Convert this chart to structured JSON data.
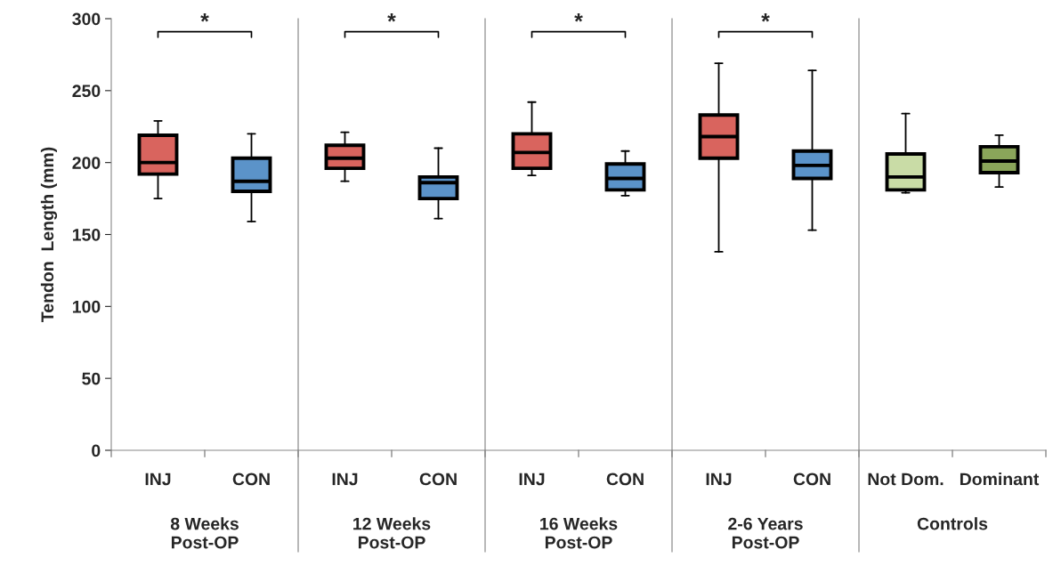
{
  "chart_data": {
    "type": "box",
    "categories": [
      "INJ",
      "CON",
      "INJ",
      "CON",
      "INJ",
      "CON",
      "INJ",
      "CON",
      "Not Dom.",
      "Dominant"
    ],
    "boxes": [
      {
        "low": 175,
        "q1": 192,
        "median": 200,
        "q3": 219,
        "high": 229
      },
      {
        "low": 159,
        "q1": 180,
        "median": 187,
        "q3": 203,
        "high": 220
      },
      {
        "low": 187,
        "q1": 196,
        "median": 203,
        "q3": 212,
        "high": 221
      },
      {
        "low": 161,
        "q1": 175,
        "median": 186,
        "q3": 190,
        "high": 210
      },
      {
        "low": 191,
        "q1": 196,
        "median": 207,
        "q3": 220,
        "high": 242
      },
      {
        "low": 177,
        "q1": 181,
        "median": 189,
        "q3": 199,
        "high": 208
      },
      {
        "low": 138,
        "q1": 203,
        "median": 218,
        "q3": 233,
        "high": 269
      },
      {
        "low": 153,
        "q1": 189,
        "median": 198,
        "q3": 208,
        "high": 264
      },
      {
        "low": 179,
        "q1": 181,
        "median": 190,
        "q3": 206,
        "high": 234
      },
      {
        "low": 183,
        "q1": 193,
        "median": 201,
        "q3": 211,
        "high": 219
      }
    ],
    "colors": [
      "#d9645e",
      "#5b93c9",
      "#d9645e",
      "#5b93c9",
      "#d9645e",
      "#5b93c9",
      "#d9645e",
      "#5b93c9",
      "#c9dca6",
      "#8aa55a"
    ],
    "ylabel": "Tendon  Length (mm)",
    "ylim": [
      0,
      300
    ],
    "yticks": [
      0,
      50,
      100,
      150,
      200,
      250,
      300
    ],
    "grid": false,
    "annotations": [
      "8 Weeks\nPost-OP",
      "12 Weeks\nPost-OP",
      "16 Weeks\nPost-OP",
      "2-6 Years\nPost-OP",
      "Controls",
      "*",
      "*",
      "*",
      "*"
    ]
  }
}
